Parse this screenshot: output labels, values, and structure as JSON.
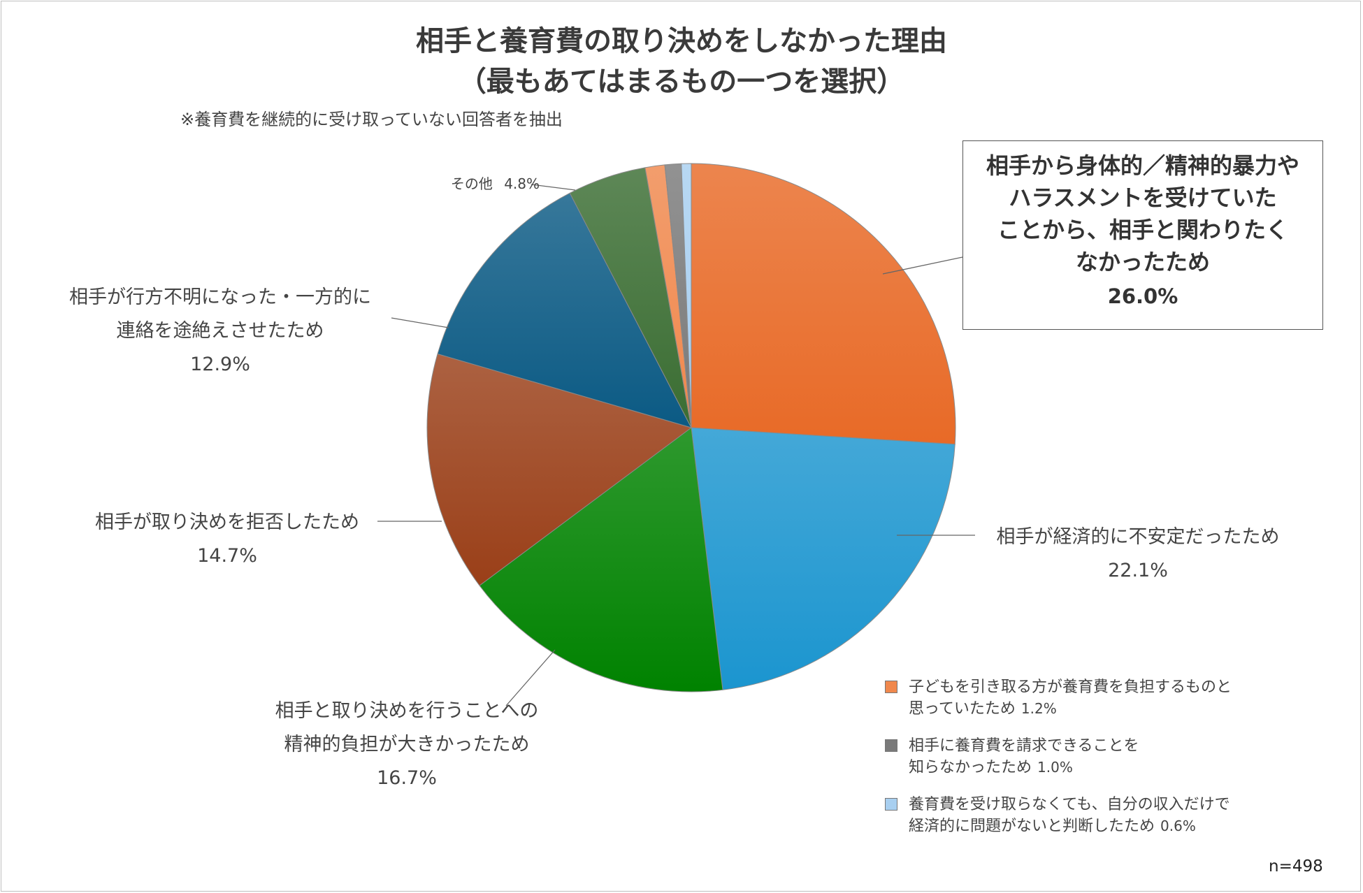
{
  "title_line1": "相手と養育費の取り決めをしなかった理由",
  "title_line2": "（最もあてはまるもの一つを選択）",
  "note": "※養育費を継続的に受け取っていない回答者を抽出",
  "sample": "n=498",
  "chart_data": {
    "type": "pie",
    "title": "相手と養育費の取り決めをしなかった理由（最もあてはまるもの一つを選択）",
    "slices": [
      {
        "label": "相手から身体的／精神的暴力やハラスメントを受けていたことから、相手と関わりたくなかったため",
        "value": 26.0,
        "value_text": "26.0%",
        "color": "#e86a27"
      },
      {
        "label": "相手が経済的に不安定だったため",
        "value": 22.1,
        "value_text": "22.1%",
        "color": "#1b95cf"
      },
      {
        "label": "相手と取り決めを行うことへの精神的負担が大きかったため",
        "value": 16.7,
        "value_text": "16.7%",
        "color": "#008200"
      },
      {
        "label": "相手が取り決めを拒否したため",
        "value": 14.7,
        "value_text": "14.7%",
        "color": "#9a3f18"
      },
      {
        "label": "相手が行方不明になった・一方的に連絡を途絶えさせたため",
        "value": 12.9,
        "value_text": "12.9%",
        "color": "#0b5a84"
      },
      {
        "label": "その他",
        "value": 4.8,
        "value_text": "4.8%",
        "color": "#3a6d32"
      },
      {
        "label": "子どもを引き取る方が養育費を負担するものと思っていたため",
        "value": 1.2,
        "value_text": "1.2%",
        "color": "#f0884d"
      },
      {
        "label": "相手に養育費を請求できることを知らなかったため",
        "value": 1.0,
        "value_text": "1.0%",
        "color": "#7a7a7a"
      },
      {
        "label": "養育費を受け取らなくても、自分の収入だけで経済的に問題がないと判断したため",
        "value": 0.6,
        "value_text": "0.6%",
        "color": "#a8cff0"
      }
    ]
  },
  "labels": {
    "violence_l1": "相手から身体的／精神的暴力や",
    "violence_l2": "ハラスメントを受けていた",
    "violence_l3": "ことから、相手と関わりたく",
    "violence_l4": "なかったため",
    "violence_pct": "26.0%",
    "econ": "相手が経済的に不安定だったため",
    "econ_pct": "22.1%",
    "burden_l1": "相手と取り決めを行うことへの",
    "burden_l2": "精神的負担が大きかったため",
    "burden_pct": "16.7%",
    "refuse": "相手が取り決めを拒否したため",
    "refuse_pct": "14.7%",
    "missing_l1": "相手が行方不明になった・一方的に",
    "missing_l2": "連絡を途絶えさせたため",
    "missing_pct": "12.9%",
    "other": "その他",
    "other_pct": "4.8%"
  },
  "legend": [
    {
      "line1": "子どもを引き取る方が養育費を負担するものと",
      "line2": "思っていたため",
      "value": "1.2%",
      "color": "#f0884d"
    },
    {
      "line1": "相手に養育費を請求できることを",
      "line2": "知らなかったため",
      "value": "1.0%",
      "color": "#7a7a7a"
    },
    {
      "line1": "養育費を受け取らなくても、自分の収入だけで",
      "line2": "経済的に問題がないと判断したため",
      "value": "0.6%",
      "color": "#a8cff0"
    }
  ]
}
